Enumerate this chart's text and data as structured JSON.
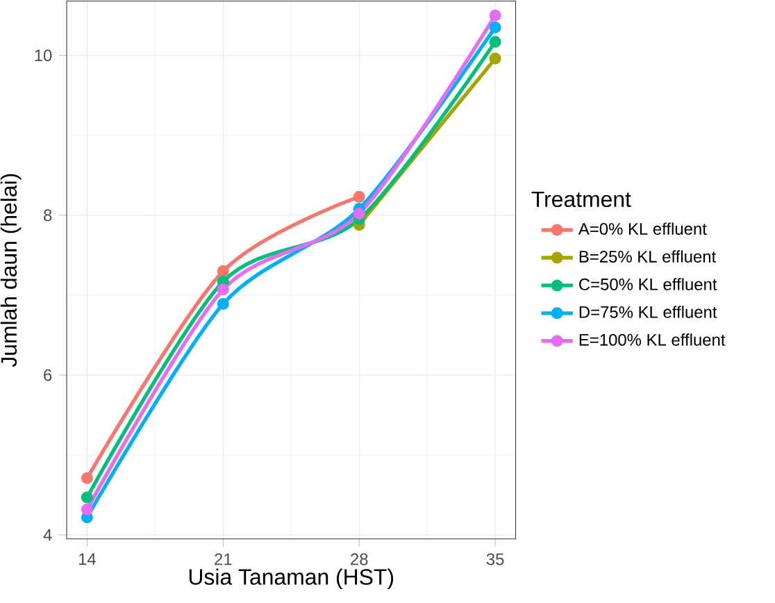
{
  "chart_data": {
    "type": "line",
    "xlabel": "Usia Tanaman (HST)",
    "ylabel": "Jumlah daun (helai)",
    "legend_title": "Treatment",
    "x": [
      14,
      21,
      28,
      35
    ],
    "xlim": [
      12.95,
      36.05
    ],
    "ylim": [
      3.95,
      10.68
    ],
    "xticks": [
      14,
      21,
      28,
      35
    ],
    "yticks": [
      4,
      6,
      8,
      10
    ],
    "grid": true,
    "legend": "right",
    "marker": "circle",
    "line_style": "solid",
    "series": [
      {
        "name": "A=0% KL effluent",
        "color": "#F8766D",
        "values": [
          4.71,
          7.3,
          8.23,
          null
        ]
      },
      {
        "name": "B=25% KL effluent",
        "color": "#A3A500",
        "values": [
          null,
          null,
          7.88,
          9.96
        ]
      },
      {
        "name": "C=50% KL effluent",
        "color": "#00BF7D",
        "values": [
          4.47,
          7.17,
          7.95,
          10.17
        ]
      },
      {
        "name": "D=75% KL effluent",
        "color": "#00B0F6",
        "values": [
          4.22,
          6.89,
          8.08,
          10.35
        ]
      },
      {
        "name": "E=100% KL effluent",
        "color": "#E76BF3",
        "values": [
          4.32,
          7.07,
          8.02,
          10.5
        ]
      }
    ]
  }
}
